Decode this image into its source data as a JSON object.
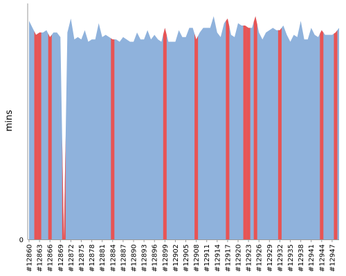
{
  "chart_data": {
    "type": "area",
    "title": "",
    "xlabel": "",
    "ylabel": "mins",
    "ylim": [
      0,
      1
    ],
    "x_tick_labels": [
      "#12860",
      "#12863",
      "#12866",
      "#12869",
      "#12872",
      "#12875",
      "#12878",
      "#12881",
      "#12884",
      "#12887",
      "#12890",
      "#12893",
      "#12896",
      "#12899",
      "#12902",
      "#12905",
      "#12908",
      "#12911",
      "#12914",
      "#12917",
      "#12920",
      "#12923",
      "#12926",
      "#12929",
      "#12932",
      "#12935",
      "#12938",
      "#12941",
      "#12944",
      "#12947"
    ],
    "y_tick_labels": [
      "0"
    ],
    "builds": [
      "#12860",
      "#12861",
      "#12862",
      "#12863",
      "#12864",
      "#12865",
      "#12866",
      "#12867",
      "#12868",
      "#12869",
      "#12870",
      "#12871",
      "#12872",
      "#12873",
      "#12874",
      "#12875",
      "#12876",
      "#12877",
      "#12878",
      "#12879",
      "#12880",
      "#12881",
      "#12882",
      "#12883",
      "#12884",
      "#12885",
      "#12886",
      "#12887",
      "#12888",
      "#12889",
      "#12890",
      "#12891",
      "#12892",
      "#12893",
      "#12894",
      "#12895",
      "#12896",
      "#12897",
      "#12898",
      "#12899",
      "#12900",
      "#12901",
      "#12902",
      "#12903",
      "#12904",
      "#12905",
      "#12906",
      "#12907",
      "#12908",
      "#12909",
      "#12910",
      "#12911",
      "#12912",
      "#12913",
      "#12914",
      "#12915",
      "#12916",
      "#12917",
      "#12918",
      "#12919",
      "#12920",
      "#12921",
      "#12922",
      "#12923",
      "#12924",
      "#12925",
      "#12926",
      "#12927",
      "#12928",
      "#12929",
      "#12930",
      "#12931",
      "#12932",
      "#12933",
      "#12934",
      "#12935",
      "#12936",
      "#12937",
      "#12938",
      "#12939",
      "#12940",
      "#12941",
      "#12942",
      "#12943",
      "#12944",
      "#12945",
      "#12946",
      "#12947",
      "#12948",
      "#12949"
    ],
    "values": [
      0.94,
      0.91,
      0.88,
      0.89,
      0.89,
      0.9,
      0.87,
      0.89,
      0.89,
      0.87,
      0.0,
      0.89,
      0.95,
      0.86,
      0.87,
      0.86,
      0.9,
      0.85,
      0.86,
      0.86,
      0.93,
      0.87,
      0.88,
      0.87,
      0.86,
      0.86,
      0.85,
      0.87,
      0.86,
      0.85,
      0.85,
      0.89,
      0.86,
      0.86,
      0.9,
      0.86,
      0.88,
      0.86,
      0.85,
      0.91,
      0.85,
      0.85,
      0.85,
      0.9,
      0.87,
      0.87,
      0.91,
      0.91,
      0.86,
      0.89,
      0.91,
      0.91,
      0.91,
      0.96,
      0.89,
      0.87,
      0.93,
      0.95,
      0.88,
      0.87,
      0.93,
      0.92,
      0.92,
      0.91,
      0.91,
      0.96,
      0.89,
      0.86,
      0.89,
      0.9,
      0.91,
      0.9,
      0.9,
      0.92,
      0.88,
      0.85,
      0.88,
      0.87,
      0.94,
      0.86,
      0.86,
      0.91,
      0.88,
      0.87,
      0.9,
      0.88,
      0.88,
      0.88,
      0.89,
      0.91
    ],
    "failed_builds": [
      "#12862",
      "#12863",
      "#12866",
      "#12870",
      "#12884",
      "#12899",
      "#12908",
      "#12917",
      "#12922",
      "#12923",
      "#12925",
      "#12932",
      "#12944",
      "#12948"
    ],
    "colors": {
      "area_fill": "#8fb2dc",
      "failed": "#e85454",
      "axis": "#999999",
      "background": "#ffffff"
    }
  }
}
